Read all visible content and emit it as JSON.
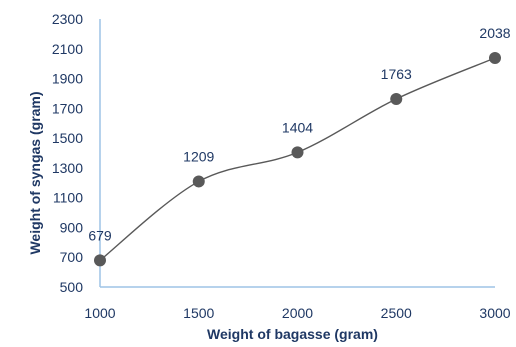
{
  "chart_data": {
    "type": "line",
    "title": "",
    "xlabel": "Weight of bagasse (gram)",
    "ylabel": "Weight of syngas (gram)",
    "x": [
      1000,
      1500,
      2000,
      2500,
      3000
    ],
    "series": [
      {
        "values": [
          679,
          1209,
          1404,
          1763,
          2038
        ]
      }
    ],
    "data_labels": [
      "679",
      "1209",
      "1404",
      "1763",
      "2038"
    ],
    "x_ticks": [
      "1000",
      "1500",
      "2000",
      "2500",
      "3000"
    ],
    "y_ticks": [
      "500",
      "700",
      "900",
      "1100",
      "1300",
      "1500",
      "1700",
      "1900",
      "2100",
      "2300"
    ],
    "xlim": [
      1000,
      3000
    ],
    "ylim": [
      500,
      2300
    ],
    "smooth": true,
    "grid": false,
    "legend": "none",
    "colors": {
      "line": "#595959",
      "marker": "#595959",
      "axis": "#9dc3e6",
      "text": "#1f3864"
    }
  }
}
